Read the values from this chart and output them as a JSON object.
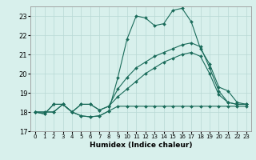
{
  "xlabel": "Humidex (Indice chaleur)",
  "xlim": [
    -0.5,
    23.5
  ],
  "ylim": [
    17,
    23.5
  ],
  "yticks": [
    17,
    18,
    19,
    20,
    21,
    22,
    23
  ],
  "xticks": [
    0,
    1,
    2,
    3,
    4,
    5,
    6,
    7,
    8,
    9,
    10,
    11,
    12,
    13,
    14,
    15,
    16,
    17,
    18,
    19,
    20,
    21,
    22,
    23
  ],
  "bg_color": "#d8f0ec",
  "line_color": "#1a6b5a",
  "grid_color": "#b8d8d4",
  "lines": [
    [
      18.0,
      17.9,
      18.4,
      18.4,
      18.0,
      17.8,
      17.75,
      17.8,
      18.05,
      18.3,
      18.3,
      18.3,
      18.3,
      18.3,
      18.3,
      18.3,
      18.3,
      18.3,
      18.3,
      18.3,
      18.3,
      18.3,
      18.3,
      18.3
    ],
    [
      18.0,
      17.9,
      18.4,
      18.4,
      18.0,
      17.8,
      17.75,
      17.8,
      18.05,
      19.8,
      21.8,
      23.0,
      22.9,
      22.5,
      22.6,
      23.3,
      23.4,
      22.7,
      21.3,
      20.5,
      19.3,
      19.1,
      18.5,
      18.4
    ],
    [
      18.0,
      18.0,
      18.0,
      18.4,
      18.0,
      18.4,
      18.4,
      18.1,
      18.3,
      19.2,
      19.8,
      20.3,
      20.6,
      20.9,
      21.1,
      21.3,
      21.5,
      21.6,
      21.4,
      20.3,
      19.1,
      18.5,
      18.4,
      18.4
    ],
    [
      18.0,
      18.0,
      18.0,
      18.4,
      18.0,
      18.4,
      18.4,
      18.1,
      18.3,
      18.8,
      19.2,
      19.6,
      20.0,
      20.3,
      20.6,
      20.8,
      21.0,
      21.1,
      20.9,
      20.0,
      18.9,
      18.5,
      18.4,
      18.4
    ]
  ]
}
